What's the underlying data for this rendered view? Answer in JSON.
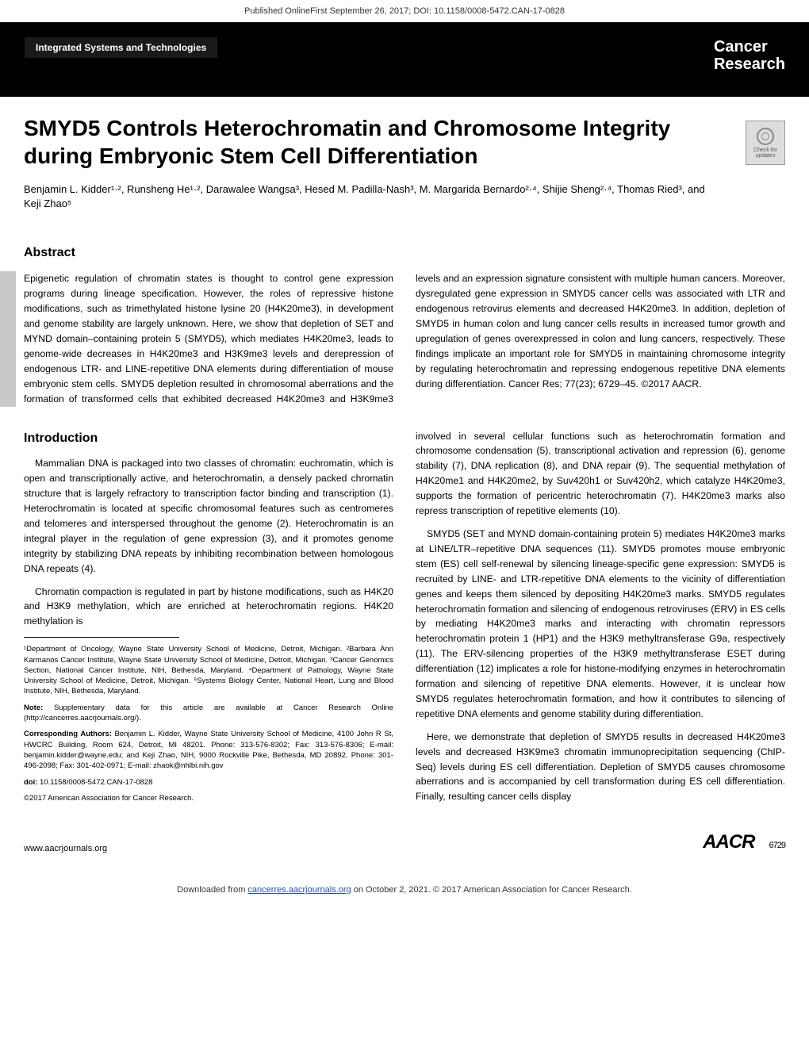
{
  "topbar": "Published OnlineFirst September 26, 2017; DOI: 10.1158/0008-5472.CAN-17-0828",
  "tag": "Integrated Systems and Technologies",
  "brand1": "Cancer",
  "brand2": "Research",
  "title": "SMYD5 Controls Heterochromatin and Chromosome Integrity during Embryonic Stem Cell Differentiation",
  "checkbadge": "Check for updates",
  "authors": "Benjamin L. Kidder¹·², Runsheng He¹·², Darawalee Wangsa³, Hesed M. Padilla-Nash³, M. Margarida Bernardo²·⁴, Shijie Sheng²·⁴, Thomas Ried³, and Keji Zhao⁵",
  "abstract_h": "Abstract",
  "abstract": "Epigenetic regulation of chromatin states is thought to control gene expression programs during lineage specification. However, the roles of repressive histone modifications, such as trimethylated histone lysine 20 (H4K20me3), in development and genome stability are largely unknown. Here, we show that depletion of SET and MYND domain–containing protein 5 (SMYD5), which mediates H4K20me3, leads to genome-wide decreases in H4K20me3 and H3K9me3 levels and derepression of endogenous LTR- and LINE-repetitive DNA elements during differentiation of mouse embryonic stem cells. SMYD5 depletion resulted in chromosomal aberrations and the formation of transformed cells that exhibited decreased H4K20me3 and H3K9me3 levels and an expression signature consistent with multiple human cancers. Moreover, dysregulated gene expression in SMYD5 cancer cells was associated with LTR and endogenous retrovirus elements and decreased H4K20me3. In addition, depletion of SMYD5 in human colon and lung cancer cells results in increased tumor growth and upregulation of genes overexpressed in colon and lung cancers, respectively. These findings implicate an important role for SMYD5 in maintaining chromosome integrity by regulating heterochromatin and repressing endogenous repetitive DNA elements during differentiation. Cancer Res; 77(23); 6729–45. ©2017 AACR.",
  "intro_h": "Introduction",
  "intro_p1": "Mammalian DNA is packaged into two classes of chromatin: euchromatin, which is open and transcriptionally active, and heterochromatin, a densely packed chromatin structure that is largely refractory to transcription factor binding and transcription (1). Heterochromatin is located at specific chromosomal features such as centromeres and telomeres and interspersed throughout the genome (2). Heterochromatin is an integral player in the regulation of gene expression (3), and it promotes genome integrity by stabilizing DNA repeats by inhibiting recombination between homologous DNA repeats (4).",
  "intro_p2": "Chromatin compaction is regulated in part by histone modifications, such as H4K20 and H3K9 methylation, which are enriched at heterochromatin regions. H4K20 methylation is",
  "right_p1": "involved in several cellular functions such as heterochromatin formation and chromosome condensation (5), transcriptional activation and repression (6), genome stability (7), DNA replication (8), and DNA repair (9). The sequential methylation of H4K20me1 and H4K20me2, by Suv420h1 or Suv420h2, which catalyze H4K20me3, supports the formation of pericentric heterochromatin (7). H4K20me3 marks also repress transcription of repetitive elements (10).",
  "right_p2": "SMYD5 (SET and MYND domain-containing protein 5) mediates H4K20me3 marks at LINE/LTR–repetitive DNA sequences (11). SMYD5 promotes mouse embryonic stem (ES) cell self-renewal by silencing lineage-specific gene expression: SMYD5 is recruited by LINE- and LTR-repetitive DNA elements to the vicinity of differentiation genes and keeps them silenced by depositing H4K20me3 marks. SMYD5 regulates heterochromatin formation and silencing of endogenous retroviruses (ERV) in ES cells by mediating H4K20me3 marks and interacting with chromatin repressors heterochromatin protein 1 (HP1) and the H3K9 methyltransferase G9a, respectively (11). The ERV-silencing properties of the H3K9 methyltransferase ESET during differentiation (12) implicates a role for histone-modifying enzymes in heterochromatin formation and silencing of repetitive DNA elements. However, it is unclear how SMYD5 regulates heterochromatin formation, and how it contributes to silencing of repetitive DNA elements and genome stability during differentiation.",
  "right_p3": "Here, we demonstrate that depletion of SMYD5 results in decreased H4K20me3 levels and decreased H3K9me3 chromatin immunoprecipitation sequencing (ChIP-Seq) levels during ES cell differentiation. Depletion of SMYD5 causes chromosome aberrations and is accompanied by cell transformation during ES cell differentiation. Finally, resulting cancer cells display",
  "aff1": "¹Department of Oncology, Wayne State University School of Medicine, Detroit, Michigan. ²Barbara Ann Karmanos Cancer Institute, Wayne State University School of Medicine, Detroit, Michigan. ³Cancer Genomics Section, National Cancer Institute, NIH, Bethesda, Maryland. ⁴Department of Pathology, Wayne State University School of Medicine, Detroit, Michigan. ⁵Systems Biology Center, National Heart, Lung and Blood Institute, NIH, Bethesda, Maryland.",
  "note_label": "Note:",
  "note": " Supplementary data for this article are available at Cancer Research Online (http://cancerres.aacrjournals.org/).",
  "corr_label": "Corresponding Authors:",
  "corr": " Benjamin L. Kidder, Wayne State University School of Medicine, 4100 John R St, HWCRC Building, Room 624, Detroit, MI 48201. Phone: 313-576-8302; Fax: 313-576-8306; E-mail: benjamin.kidder@wayne.edu; and Keji Zhao, NIH, 9000 Rockville Pike, Bethesda, MD 20892. Phone: 301-496-2098; Fax: 301-402-0971; E-mail: zhaok@nhlbi.nih.gov",
  "doi_label": "doi:",
  "doi": " 10.1158/0008-5472.CAN-17-0828",
  "copyright": "©2017 American Association for Cancer Research.",
  "footer_left": "www.aacrjournals.org",
  "footer_brand": "AACR",
  "page_num": "6729",
  "download": "Downloaded from cancerres.aacrjournals.org on October 2, 2021. © 2017 American Association for Cancer Research.",
  "dl_prefix": "Downloaded from ",
  "dl_link": "cancerres.aacrjournals.org",
  "dl_suffix": " on October 2, 2021. © 2017 American Association for Cancer Research."
}
